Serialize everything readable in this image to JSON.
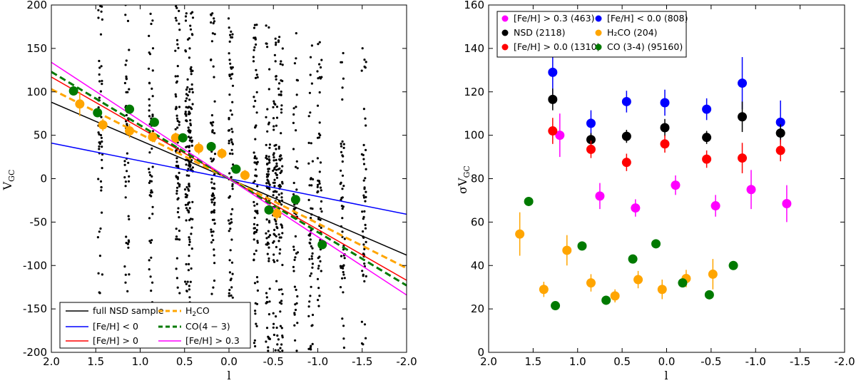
{
  "chart_data": [
    {
      "type": "scatter",
      "title": "",
      "xlabel": "l",
      "ylabel_main": "V",
      "ylabel_sub": "GC",
      "xlim": [
        2.0,
        -2.0
      ],
      "ylim": [
        -200,
        200
      ],
      "x_ticks": [
        "2.0",
        "1.5",
        "1.0",
        "0.5",
        "0.0",
        "-0.5",
        "-1.0",
        "-1.5",
        "-2.0"
      ],
      "y_ticks": [
        "-200",
        "-150",
        "-100",
        "-50",
        "0",
        "50",
        "100",
        "150",
        "200"
      ],
      "legend_position": "lower-left",
      "nsd_stripes": [
        1.45,
        1.15,
        0.88,
        0.58,
        0.47,
        0.43,
        0.18,
        -0.02,
        -0.3,
        -0.44,
        -0.52,
        -0.58,
        -0.75,
        -0.92,
        -1.02,
        -1.28,
        -1.52
      ],
      "series": [
        {
          "name": "full NSD sample",
          "kind": "line",
          "color": "#000000",
          "dash": "solid",
          "slope": 44,
          "intercept": 0
        },
        {
          "name": "[Fe/H] < 0",
          "kind": "line",
          "color": "#0000ff",
          "dash": "solid",
          "slope": 20.5,
          "intercept": 0
        },
        {
          "name": "[Fe/H] > 0",
          "kind": "line",
          "color": "#ff0000",
          "dash": "solid",
          "slope": 58.5,
          "intercept": 0
        },
        {
          "name": "H2CO",
          "label_main": "H",
          "label_sub": "2",
          "label_tail": "CO",
          "kind": "line",
          "color": "#ffa500",
          "dash": "dashed",
          "slope": 51.5,
          "intercept": 0
        },
        {
          "name": "CO(4-3)",
          "label_main": "CO(4 − 3)",
          "kind": "line",
          "color": "#007a00",
          "dash": "dashed",
          "slope": 61.5,
          "intercept": 0
        },
        {
          "name": "[Fe/H] > 0.3",
          "kind": "line",
          "color": "#ff00ff",
          "dash": "solid",
          "slope": 67,
          "intercept": 0
        },
        {
          "name": "H2CO points",
          "kind": "points",
          "color": "#ffa500",
          "x": [
            1.68,
            1.42,
            1.12,
            0.86,
            0.6,
            0.34,
            0.08,
            -0.18,
            -0.54
          ],
          "y": [
            86,
            62,
            55,
            48,
            47,
            35,
            29,
            4,
            -40
          ],
          "err": [
            14,
            7,
            8,
            6,
            6,
            7,
            6,
            6,
            8
          ]
        },
        {
          "name": "CO points",
          "kind": "points",
          "color": "#007a00",
          "x": [
            1.75,
            1.48,
            1.12,
            0.84,
            0.52,
            0.2,
            -0.08,
            -0.45,
            -0.75,
            -1.05
          ],
          "y": [
            101,
            76,
            80,
            65,
            47,
            37,
            11,
            -36,
            -24,
            -76
          ],
          "err": [
            0,
            0,
            0,
            0,
            0,
            0,
            0,
            0,
            0,
            0
          ]
        }
      ],
      "legend": [
        {
          "label": "full NSD sample",
          "color": "#000000",
          "dash": "solid"
        },
        {
          "label": "[Fe/H] < 0",
          "color": "#0000ff",
          "dash": "solid"
        },
        {
          "label": "[Fe/H] > 0",
          "color": "#ff0000",
          "dash": "solid"
        },
        {
          "label_main": "H",
          "label_sub": "2",
          "label_tail": "CO",
          "color": "#ffa500",
          "dash": "dashed"
        },
        {
          "label_main": "CO(4 − 3)",
          "color": "#007a00",
          "dash": "dashed"
        },
        {
          "label": "[Fe/H] > 0.3",
          "color": "#ff00ff",
          "dash": "solid"
        }
      ]
    },
    {
      "type": "scatter",
      "title": "",
      "xlabel": "l",
      "ylabel_main": "σV",
      "ylabel_sub": "GC",
      "xlim": [
        2.0,
        -2.0
      ],
      "ylim": [
        0,
        160
      ],
      "x_ticks": [
        "2.0",
        "1.5",
        "1.0",
        "0.5",
        "0.0",
        "-0.5",
        "-1.0",
        "-1.5",
        "-2.0"
      ],
      "y_ticks": [
        "0",
        "20",
        "40",
        "60",
        "80",
        "100",
        "120",
        "140",
        "160"
      ],
      "legend_position": "top-left",
      "series": [
        {
          "name": "[Fe/H] > 0.3",
          "count": "(463)",
          "color": "#ff00ff",
          "x": [
            1.2,
            0.75,
            0.35,
            -0.1,
            -0.55,
            -0.95,
            -1.35
          ],
          "y": [
            100,
            72,
            66.5,
            77,
            67.5,
            75,
            68.5
          ],
          "err": [
            10,
            6,
            4,
            4.5,
            5,
            9,
            8.5
          ]
        },
        {
          "name": "[Fe/H] < 0.0",
          "count": "(808)",
          "color": "#0000ff",
          "x": [
            1.28,
            0.85,
            0.45,
            0.02,
            -0.45,
            -0.85,
            -1.28
          ],
          "y": [
            129,
            105.5,
            115.5,
            115,
            112,
            124,
            106
          ],
          "err": [
            10,
            6,
            5,
            6,
            5,
            12,
            10
          ]
        },
        {
          "name": "NSD",
          "count": "(2118)",
          "color": "#000000",
          "x": [
            1.28,
            0.85,
            0.45,
            0.02,
            -0.45,
            -0.85,
            -1.28
          ],
          "y": [
            116.5,
            98,
            99.5,
            103.5,
            99,
            108.5,
            101
          ],
          "err": [
            5,
            3,
            3,
            4,
            3,
            7,
            4
          ]
        },
        {
          "name": "H₂CO",
          "count": "(204)",
          "color": "#ffa500",
          "x": [
            1.65,
            1.38,
            1.12,
            0.85,
            0.58,
            0.32,
            0.05,
            -0.22,
            -0.52
          ],
          "y": [
            54.5,
            29,
            47,
            32,
            26,
            33.5,
            29,
            34,
            36
          ],
          "err": [
            10,
            3.5,
            7,
            4,
            3,
            4,
            4.5,
            4,
            7
          ]
        },
        {
          "name": "[Fe/H] > 0.0",
          "count": "(1310)",
          "color": "#ff0000",
          "x": [
            1.28,
            0.85,
            0.45,
            0.02,
            -0.45,
            -0.85,
            -1.28
          ],
          "y": [
            102,
            93.5,
            87.5,
            96,
            89,
            89.5,
            93
          ],
          "err": [
            6,
            4,
            4,
            4,
            4,
            7,
            5
          ]
        },
        {
          "name": "CO (3-4)",
          "count": "(95160)",
          "color": "#007a00",
          "x": [
            1.55,
            1.25,
            0.95,
            0.68,
            0.38,
            0.12,
            -0.18,
            -0.48,
            -0.75
          ],
          "y": [
            69.5,
            21.5,
            49,
            24,
            43,
            50,
            32,
            26.5,
            40
          ],
          "err": [
            0,
            0,
            0,
            0,
            0,
            0,
            0,
            0,
            0
          ]
        }
      ]
    }
  ]
}
